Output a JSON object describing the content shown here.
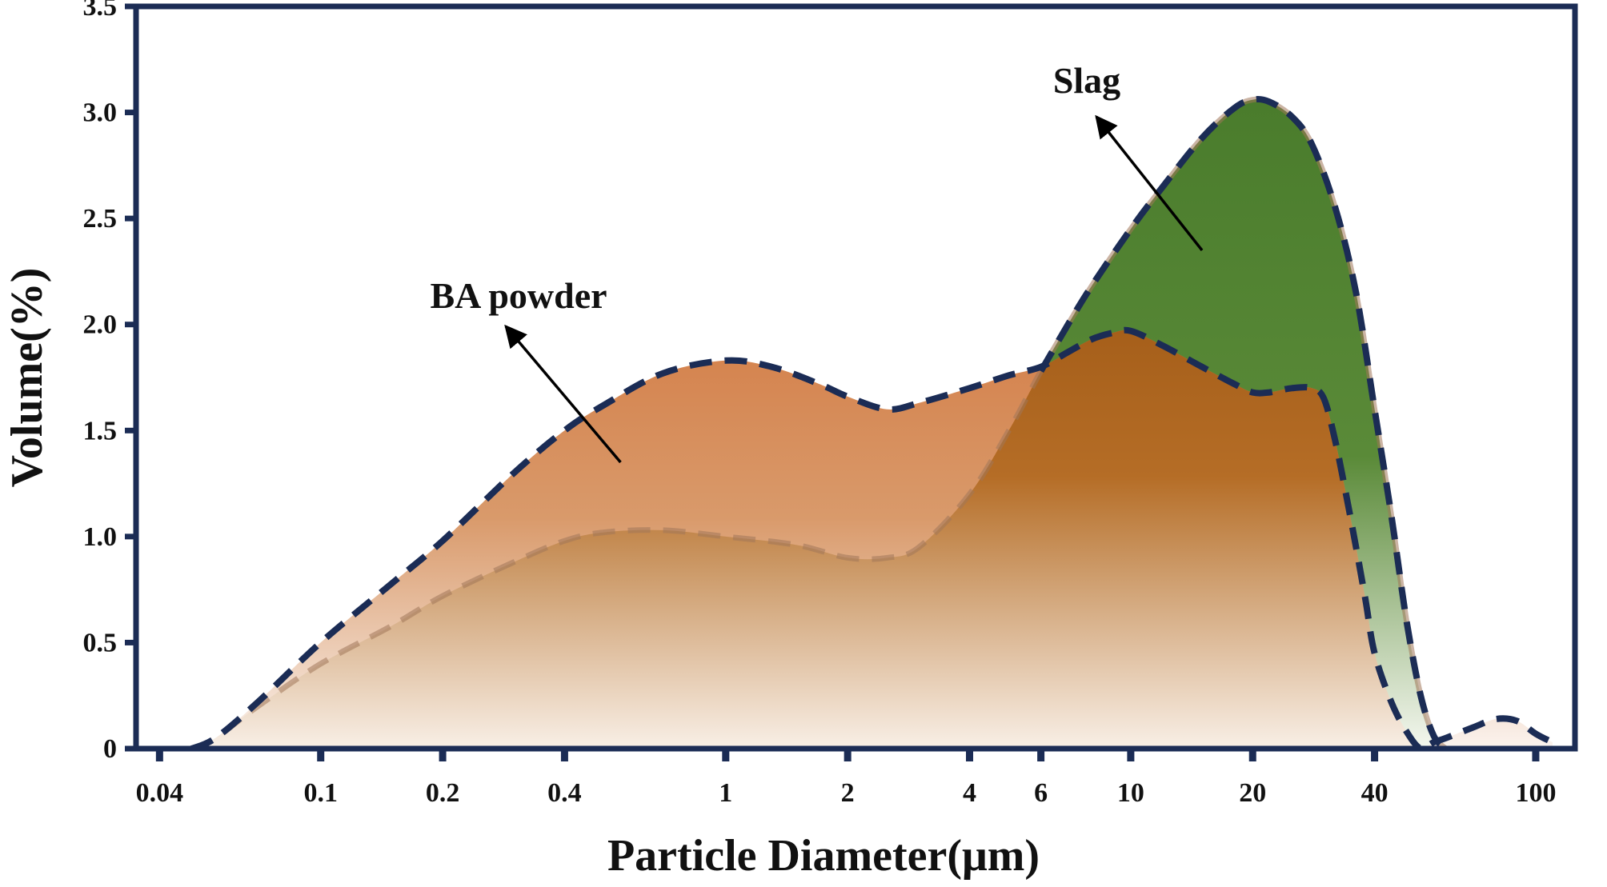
{
  "chart_data": {
    "type": "area",
    "title": "",
    "xlabel": "Particle Diameter(μm)",
    "ylabel": "Volume(%)",
    "x_scale": "log",
    "xlim": [
      0.035,
      125
    ],
    "ylim": [
      0,
      3.5
    ],
    "x_ticks": [
      0.04,
      0.1,
      0.2,
      0.4,
      1,
      2,
      4,
      6,
      10,
      20,
      40,
      100
    ],
    "x_tick_labels": [
      "0.04",
      "0.1",
      "0.2",
      "0.4",
      "1",
      "2",
      "4",
      "6",
      "10",
      "20",
      "40",
      "100"
    ],
    "y_ticks": [
      0,
      0.5,
      1.0,
      1.5,
      2.0,
      2.5,
      3.0,
      3.5
    ],
    "y_tick_labels": [
      "0",
      "0.5",
      "1.0",
      "1.5",
      "2.0",
      "2.5",
      "3.0",
      "3.5"
    ],
    "grid": false,
    "legend": "none",
    "annotations": [
      {
        "text": "Slag",
        "series": "Slag"
      },
      {
        "text": "BA powder",
        "series": "BA powder"
      }
    ],
    "colors": {
      "slag_fill": "#4a7c2c",
      "ba_fill": "#d4804a",
      "ba_fill_dark": "#a65f1a",
      "curve_line": "#1b2c55",
      "frame": "#1b2c55"
    },
    "series": [
      {
        "name": "Slag",
        "x": [
          0.048,
          0.055,
          0.07,
          0.1,
          0.15,
          0.2,
          0.3,
          0.4,
          0.5,
          0.7,
          1.0,
          1.5,
          2.0,
          2.5,
          3.0,
          4.0,
          5.0,
          6.0,
          7.0,
          8.0,
          10.0,
          12.0,
          15.0,
          18.0,
          20.0,
          22.0,
          25.0,
          28.0,
          32.0,
          36.0,
          40.0,
          44.0,
          48.0,
          52.0,
          56.0,
          60.0
        ],
        "y": [
          0.0,
          0.05,
          0.2,
          0.4,
          0.58,
          0.72,
          0.88,
          0.98,
          1.02,
          1.03,
          1.0,
          0.96,
          0.9,
          0.9,
          0.95,
          1.2,
          1.5,
          1.78,
          2.0,
          2.18,
          2.45,
          2.65,
          2.88,
          3.02,
          3.06,
          3.05,
          2.98,
          2.85,
          2.55,
          2.15,
          1.6,
          1.1,
          0.6,
          0.25,
          0.06,
          0.0
        ]
      },
      {
        "name": "BA powder",
        "x": [
          0.048,
          0.055,
          0.07,
          0.1,
          0.15,
          0.2,
          0.3,
          0.4,
          0.5,
          0.7,
          1.0,
          1.3,
          1.7,
          2.0,
          2.5,
          3.0,
          4.0,
          5.0,
          6.0,
          7.0,
          8.0,
          9.0,
          10.0,
          12.0,
          15.0,
          18.0,
          20.0,
          22.0,
          25.0,
          28.0,
          30.0,
          32.0,
          34.0,
          36.0,
          38.0,
          40.0,
          44.0,
          48.0,
          52.0,
          56.0,
          60.0,
          70.0,
          80.0,
          90.0,
          100.0,
          110.0
        ],
        "y": [
          0.0,
          0.05,
          0.22,
          0.5,
          0.78,
          0.98,
          1.3,
          1.5,
          1.62,
          1.77,
          1.83,
          1.8,
          1.72,
          1.66,
          1.6,
          1.63,
          1.7,
          1.76,
          1.8,
          1.87,
          1.93,
          1.96,
          1.97,
          1.9,
          1.8,
          1.72,
          1.68,
          1.68,
          1.7,
          1.7,
          1.65,
          1.45,
          1.2,
          0.95,
          0.7,
          0.45,
          0.22,
          0.08,
          0.0,
          0.03,
          0.05,
          0.1,
          0.14,
          0.13,
          0.07,
          0.03
        ]
      }
    ]
  }
}
